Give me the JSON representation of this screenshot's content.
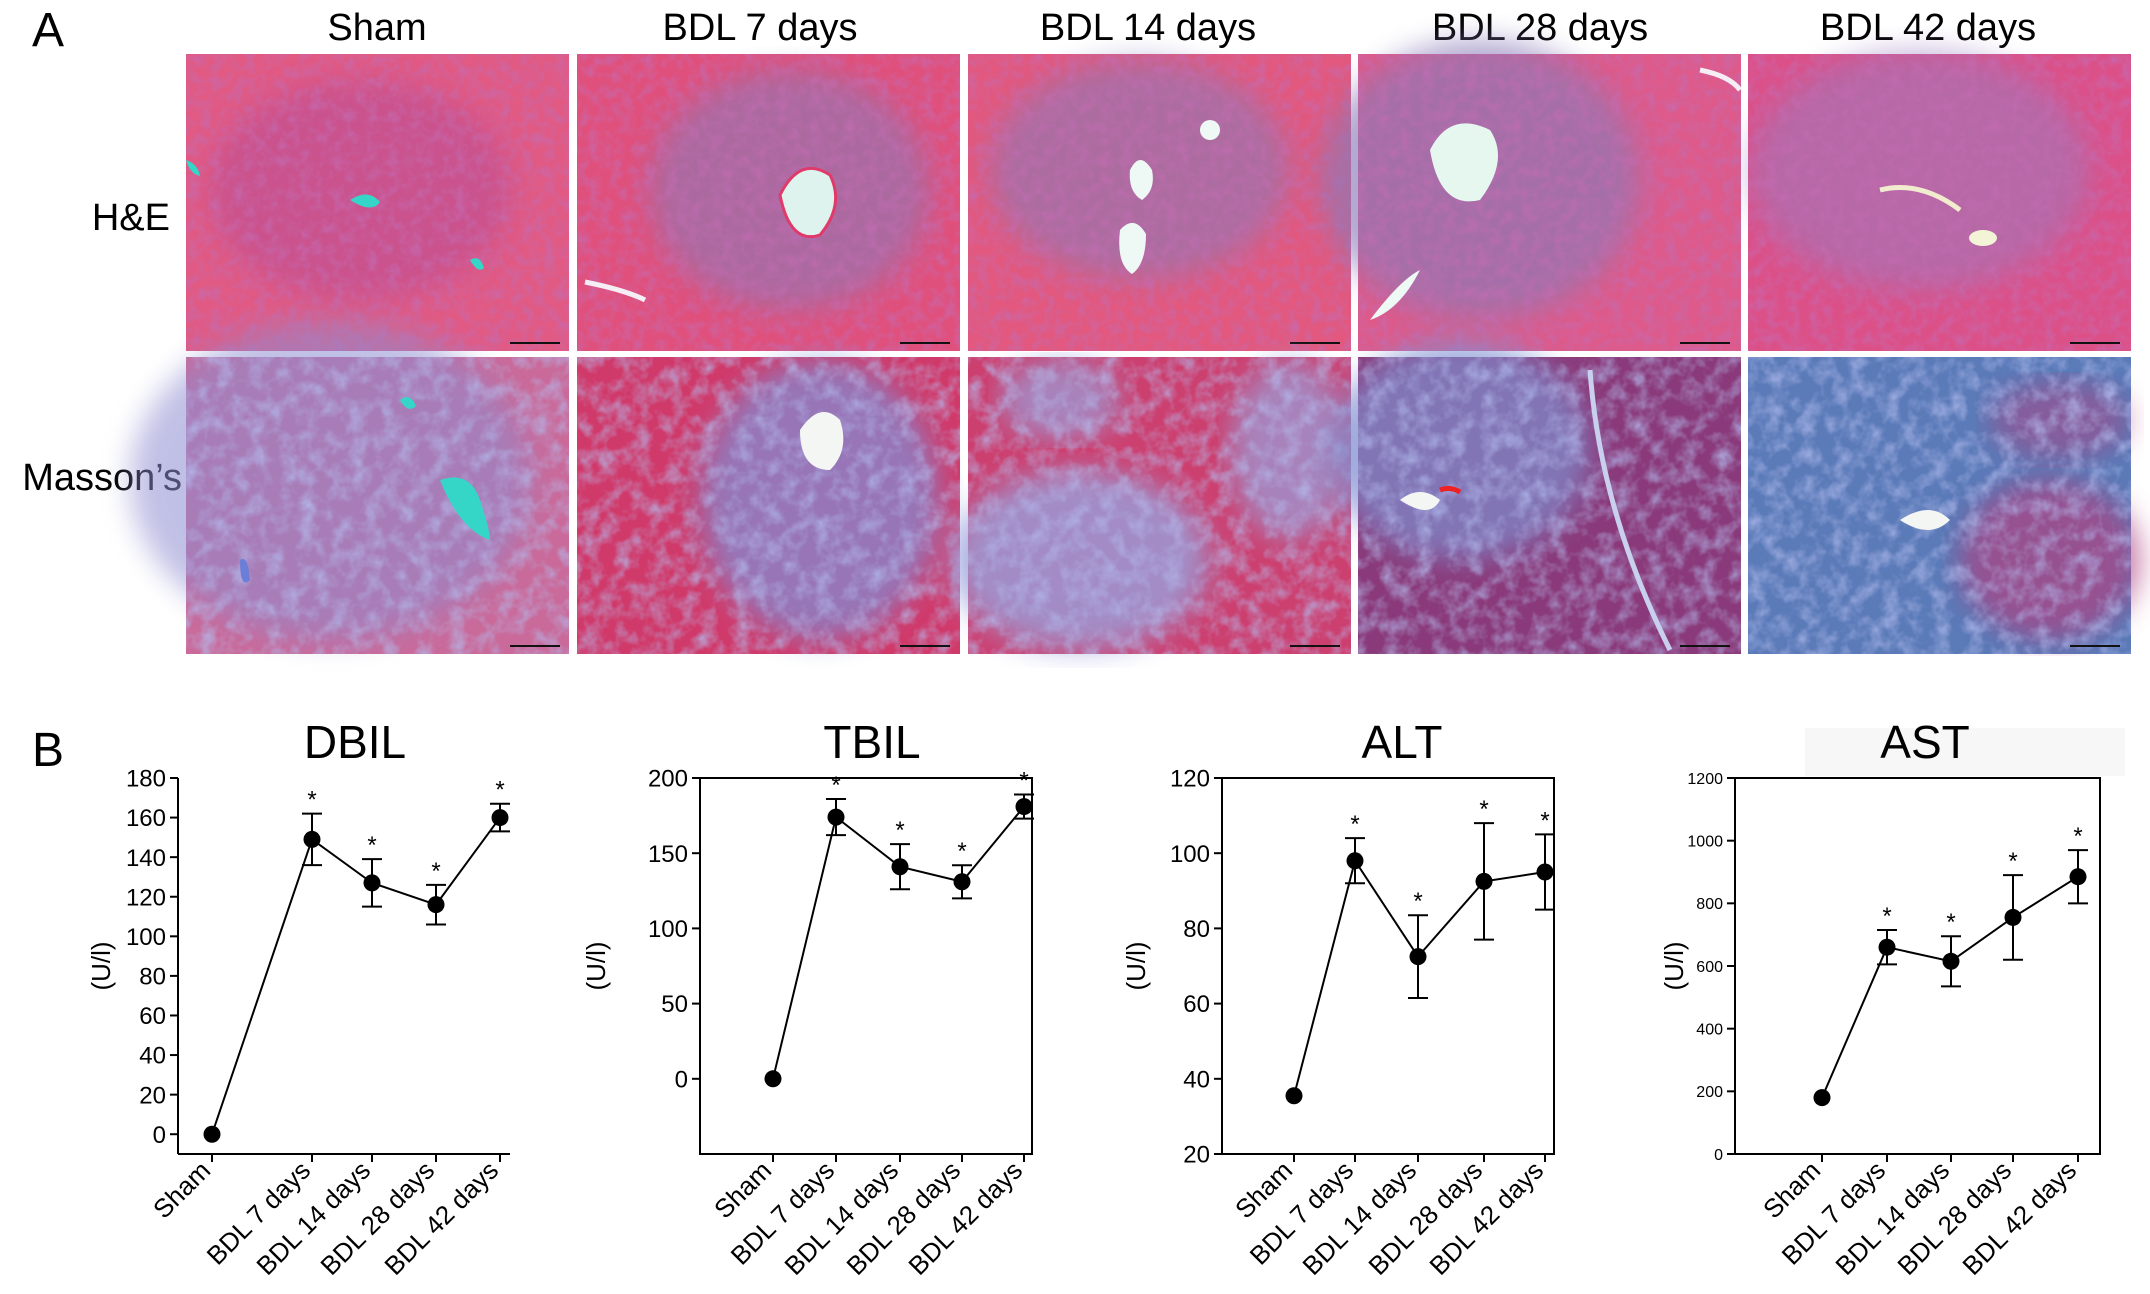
{
  "panel_a": {
    "letter": "A",
    "columns": [
      "Sham",
      "BDL 7 days",
      "BDL 14 days",
      "BDL 28 days",
      "BDL 42 days"
    ],
    "rows": [
      "H&E",
      "Masson’s"
    ],
    "colors": {
      "he_background": "#e0507a",
      "he_dark": "#b03a8a",
      "he_fiber": "#8a6fb8",
      "masson_red": "#d23a66",
      "masson_blue": "#7f8fd0",
      "lumen": "#dff3ee",
      "lumen_cyan": "#35d6c8"
    }
  },
  "panel_b": {
    "letter": "B"
  },
  "chart_data": [
    {
      "type": "line",
      "title": "DBIL",
      "ylabel": "(U/l)",
      "categories": [
        "Sham",
        "BDL 7 days",
        "BDL 14 days",
        "BDL 28 days",
        "BDL 42 days"
      ],
      "values": [
        0,
        149,
        127,
        116,
        160
      ],
      "errors": [
        0,
        13,
        12,
        10,
        7
      ],
      "significant": [
        false,
        true,
        true,
        true,
        true
      ],
      "marker": "*",
      "ylim": [
        -10,
        180
      ],
      "yticks": [
        0,
        20,
        40,
        60,
        80,
        100,
        120,
        140,
        160,
        180
      ],
      "ytick_labels": [
        "0",
        "20",
        "40",
        "60",
        "80",
        "100",
        "120",
        "140",
        "160",
        "180"
      ],
      "frame": "left-bottom"
    },
    {
      "type": "line",
      "title": "TBIL",
      "ylabel": "(U/l)",
      "categories": [
        "Sham",
        "BDL 7 days",
        "BDL 14 days",
        "BDL 28 days",
        "BDL 42 days"
      ],
      "values": [
        0,
        174,
        141,
        131,
        181
      ],
      "errors": [
        0,
        12,
        15,
        11,
        8
      ],
      "significant": [
        false,
        true,
        true,
        true,
        true
      ],
      "marker": "*",
      "ylim": [
        -50,
        200
      ],
      "yticks": [
        0,
        50,
        100,
        150,
        200
      ],
      "ytick_labels": [
        "0",
        "50",
        "100",
        "150",
        "200"
      ],
      "frame": "box"
    },
    {
      "type": "line",
      "title": "ALT",
      "ylabel": "(U/l)",
      "categories": [
        "Sham",
        "BDL 7 days",
        "BDL 14 days",
        "BDL 28 days",
        "BDL 42 days"
      ],
      "values": [
        35.5,
        98,
        72.5,
        92.5,
        95
      ],
      "errors": [
        0,
        6,
        11,
        15.5,
        10
      ],
      "significant": [
        false,
        true,
        true,
        true,
        true
      ],
      "marker": "*",
      "ylim": [
        20,
        120
      ],
      "yticks": [
        20,
        40,
        60,
        80,
        100,
        120
      ],
      "ytick_labels": [
        "20",
        "40",
        "60",
        "80",
        "100",
        "120"
      ],
      "frame": "box"
    },
    {
      "type": "line",
      "title": "AST",
      "ylabel": "(U/l)",
      "categories": [
        "Sham",
        "BDL 7 days",
        "BDL 14 days",
        "BDL 28 days",
        "BDL 42 days"
      ],
      "values": [
        180,
        660,
        615,
        755,
        885
      ],
      "errors": [
        0,
        55,
        80,
        135,
        85
      ],
      "significant": [
        false,
        true,
        true,
        true,
        true
      ],
      "marker": "*",
      "ylim": [
        0,
        1200
      ],
      "yticks": [
        0,
        200,
        400,
        600,
        800,
        1000,
        1200
      ],
      "ytick_labels": [
        "0",
        "200",
        "400",
        "600",
        "800",
        "1000",
        "1200"
      ],
      "frame": "box"
    }
  ]
}
